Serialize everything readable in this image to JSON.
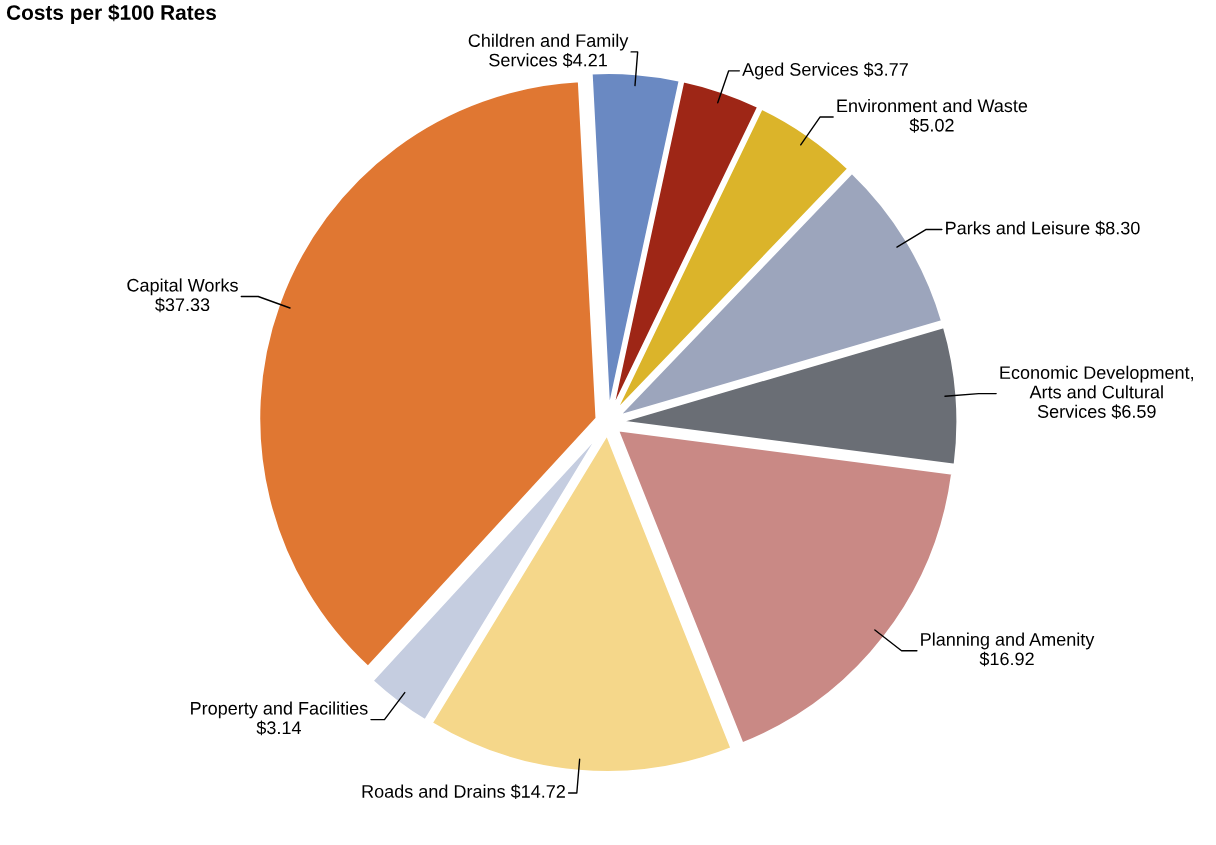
{
  "chart_data": {
    "type": "pie",
    "title": "Costs per $100 Rates",
    "categories": [
      "Children and Family\nServices $4.21",
      "Aged Services $3.77",
      "Environment and Waste\n$5.02",
      "Parks and Leisure $8.30",
      "Economic Development,\nArts and Cultural\nServices $6.59",
      "Planning and Amenity\n$16.92",
      "Roads and Drains $14.72",
      "Property and Facilities\n$3.14",
      "Capital Works\n$37.33"
    ],
    "values": [
      4.21,
      3.77,
      5.02,
      8.3,
      6.59,
      16.92,
      14.72,
      3.14,
      37.33
    ],
    "colors": [
      "#6a89c2",
      "#9e2616",
      "#dbb42a",
      "#9ca5bc",
      "#6a6e75",
      "#c98985",
      "#f5d78a",
      "#c5cde0",
      "#e07732"
    ],
    "legend": false
  }
}
